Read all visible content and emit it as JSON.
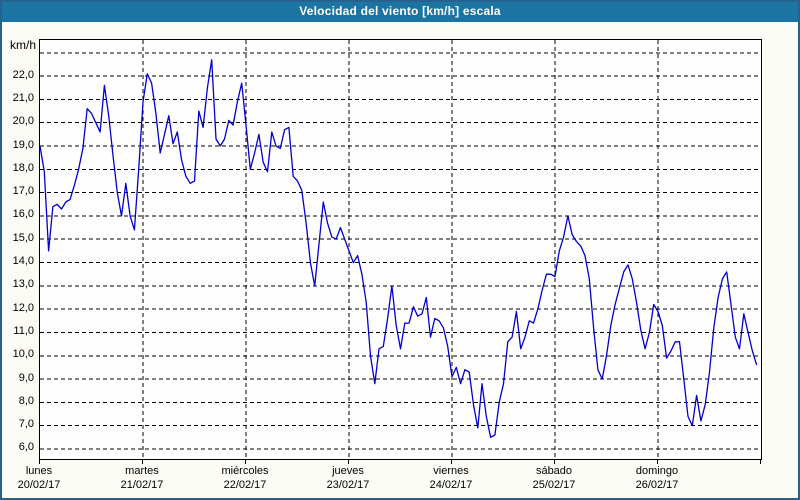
{
  "window": {
    "title": "Velocidad del viento [km/h] escala"
  },
  "colors": {
    "titlebar_bg": "#1b74a1",
    "titlebar_text": "#ffffff",
    "frame_border": "#26618f",
    "background": "#fbfcf6",
    "grid": "#000000",
    "line": "#0000cc"
  },
  "chart_data": {
    "type": "line",
    "title": "Velocidad del viento [km/h] escala",
    "unit_label": "km/h",
    "series_name": "Velocidad del viento",
    "line_color": "#0000cc",
    "grid": "dashed",
    "legend": "none",
    "y_axis_range": [
      5.57,
      23.55
    ],
    "y_gridlines": [
      23,
      22,
      21,
      20,
      19,
      18,
      17,
      16,
      15,
      14,
      13,
      12,
      11,
      10,
      9,
      8,
      7,
      6
    ],
    "y_ticks": [
      {
        "value": 22,
        "label": "22,0"
      },
      {
        "value": 21,
        "label": "21,0"
      },
      {
        "value": 20,
        "label": "20,0"
      },
      {
        "value": 19,
        "label": "19,0"
      },
      {
        "value": 18,
        "label": "18,0"
      },
      {
        "value": 17,
        "label": "17,0"
      },
      {
        "value": 16,
        "label": "16,0"
      },
      {
        "value": 15,
        "label": "15,0"
      },
      {
        "value": 14,
        "label": "14,0"
      },
      {
        "value": 13,
        "label": "13,0"
      },
      {
        "value": 12,
        "label": "12,0"
      },
      {
        "value": 11,
        "label": "11,0"
      },
      {
        "value": 10,
        "label": "10,0"
      },
      {
        "value": 9,
        "label": "9,0"
      },
      {
        "value": 8,
        "label": "8,0"
      },
      {
        "value": 7,
        "label": "7,0"
      },
      {
        "value": 6,
        "label": "6,0"
      }
    ],
    "x_days": [
      {
        "name": "lunes",
        "date": "20/02/17"
      },
      {
        "name": "martes",
        "date": "21/02/17"
      },
      {
        "name": "miércoles",
        "date": "22/02/17"
      },
      {
        "name": "jueves",
        "date": "23/02/17"
      },
      {
        "name": "viernes",
        "date": "24/02/17"
      },
      {
        "name": "sábado",
        "date": "25/02/17"
      },
      {
        "name": "domingo",
        "date": "26/02/17"
      }
    ],
    "points_per_day": 24,
    "values": [
      19.0,
      17.9,
      14.5,
      16.4,
      16.5,
      16.3,
      16.6,
      16.7,
      17.3,
      18.0,
      18.9,
      20.6,
      20.4,
      20.0,
      19.6,
      21.6,
      20.3,
      18.6,
      17.0,
      16.0,
      17.4,
      16.0,
      15.4,
      18.0,
      20.9,
      22.1,
      21.7,
      20.4,
      18.7,
      19.5,
      20.3,
      19.1,
      19.6,
      18.4,
      17.7,
      17.4,
      17.5,
      20.5,
      19.8,
      21.5,
      22.7,
      19.3,
      19.0,
      19.3,
      20.1,
      19.9,
      20.9,
      21.7,
      19.9,
      18.0,
      18.7,
      19.5,
      18.3,
      17.9,
      19.6,
      19.0,
      18.9,
      19.7,
      19.8,
      17.7,
      17.5,
      17.1,
      15.7,
      14.0,
      13.0,
      14.8,
      16.6,
      15.7,
      15.1,
      15.0,
      15.5,
      15.0,
      14.5,
      14.0,
      14.3,
      13.5,
      12.3,
      10.0,
      8.8,
      10.3,
      10.4,
      11.6,
      13.0,
      11.3,
      10.3,
      11.4,
      11.4,
      12.1,
      11.7,
      11.8,
      12.5,
      10.8,
      11.6,
      11.5,
      11.2,
      10.4,
      9.1,
      9.5,
      8.8,
      9.4,
      9.3,
      7.9,
      6.9,
      8.8,
      7.4,
      6.5,
      6.6,
      8.0,
      8.8,
      10.6,
      10.8,
      11.9,
      10.3,
      10.8,
      11.5,
      11.4,
      12.0,
      12.8,
      13.5,
      13.5,
      13.4,
      14.5,
      15.1,
      16.0,
      15.2,
      14.9,
      14.7,
      14.3,
      13.3,
      11.2,
      9.4,
      9.0,
      10.0,
      11.3,
      12.2,
      12.9,
      13.6,
      13.9,
      13.3,
      12.3,
      11.1,
      10.3,
      11.0,
      12.2,
      11.9,
      11.3,
      9.9,
      10.2,
      10.6,
      10.6,
      9.0,
      7.4,
      7.0,
      8.3,
      7.2,
      7.9,
      9.3,
      11.2,
      12.5,
      13.3,
      13.6,
      12.2,
      10.8,
      10.3,
      11.8,
      11.0,
      10.2,
      9.6
    ]
  }
}
